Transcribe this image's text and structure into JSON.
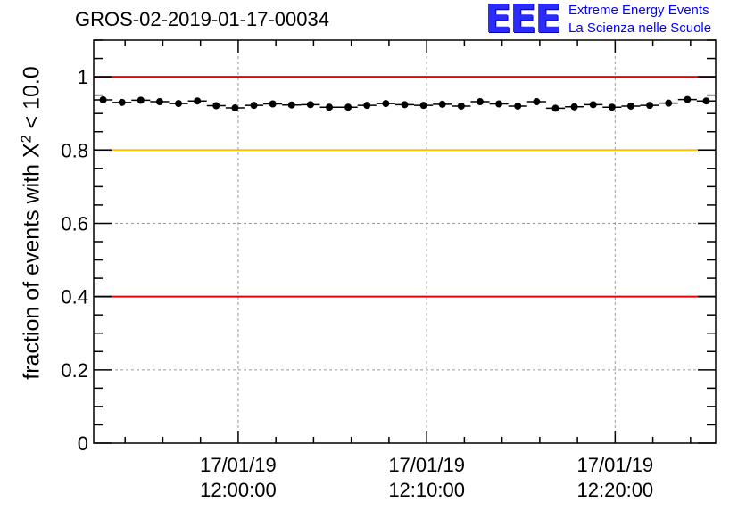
{
  "header": {
    "run_id": "GROS-02-2019-01-17-00034",
    "logo_text": "EEE",
    "tagline_1": "Extreme Energy Events",
    "tagline_2": "La Scienza nelle Scuole"
  },
  "chart_data": {
    "type": "scatter",
    "title": "GROS-02-2019-01-17-00034",
    "ylabel": "fraction of events with χ² < 10.0",
    "ylabel_prefix": "fraction of events with X",
    "ylabel_sup": "2",
    "ylabel_suffix": " < 10.0",
    "xlabel": "",
    "ylim": [
      0,
      1.1
    ],
    "xlim": [
      "2019-01-17 11:52:20",
      "2019-01-17 12:25:20"
    ],
    "x_tick_labels": [
      {
        "date": "17/01/19",
        "time": "12:00:00"
      },
      {
        "date": "17/01/19",
        "time": "12:10:00"
      },
      {
        "date": "17/01/19",
        "time": "12:20:00"
      }
    ],
    "y_tick_labels": [
      "0",
      "0.2",
      "0.4",
      "0.6",
      "0.8",
      "1"
    ],
    "grid": true,
    "reference_lines": [
      {
        "y": 1.0,
        "color": "#e8000b"
      },
      {
        "y": 0.8,
        "color": "#ffc000"
      },
      {
        "y": 0.4,
        "color": "#e8000b"
      }
    ],
    "marker_color": "#000000",
    "series": [
      {
        "x": [
          "11:52:50",
          "11:53:50",
          "11:54:50",
          "11:55:50",
          "11:56:50",
          "11:57:50",
          "11:58:50",
          "11:59:50",
          "12:00:50",
          "12:01:50",
          "12:02:50",
          "12:03:50",
          "12:04:50",
          "12:05:50",
          "12:06:50",
          "12:07:50",
          "12:08:50",
          "12:09:50",
          "12:10:50",
          "12:11:50",
          "12:12:50",
          "12:13:50",
          "12:14:50",
          "12:15:50",
          "12:16:50",
          "12:17:50",
          "12:18:50",
          "12:19:50",
          "12:20:50",
          "12:21:50",
          "12:22:50",
          "12:23:50",
          "12:24:50"
        ],
        "y": [
          0.937,
          0.93,
          0.936,
          0.932,
          0.927,
          0.934,
          0.921,
          0.915,
          0.922,
          0.926,
          0.923,
          0.924,
          0.917,
          0.917,
          0.922,
          0.927,
          0.924,
          0.922,
          0.925,
          0.92,
          0.932,
          0.926,
          0.92,
          0.932,
          0.914,
          0.918,
          0.924,
          0.917,
          0.92,
          0.922,
          0.928,
          0.938,
          0.934
        ]
      }
    ]
  }
}
